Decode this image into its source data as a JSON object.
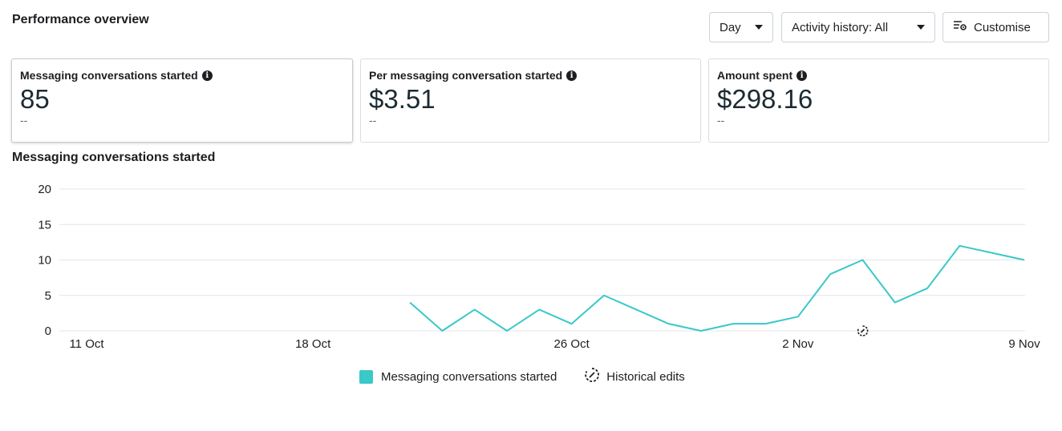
{
  "header": {
    "title": "Performance overview",
    "day_label": "Day",
    "activity_label": "Activity history: All",
    "customise_label": "Customise"
  },
  "metrics": [
    {
      "label": "Messaging conversations started",
      "value": "85",
      "sub": "--"
    },
    {
      "label": "Per messaging conversation started",
      "value": "$3.51",
      "sub": "--"
    },
    {
      "label": "Amount spent",
      "value": "$298.16",
      "sub": "--"
    }
  ],
  "chart_data": {
    "type": "line",
    "title": "Messaging conversations started",
    "xlabel": "",
    "ylabel": "",
    "ylim": [
      0,
      20
    ],
    "yticks": [
      0,
      5,
      10,
      15,
      20
    ],
    "x_ticks": [
      "11 Oct",
      "18 Oct",
      "26 Oct",
      "2 Nov",
      "9 Nov"
    ],
    "x_tick_days": [
      0,
      7,
      15,
      22,
      29
    ],
    "grid": true,
    "legend_position": "bottom",
    "series": [
      {
        "name": "Messaging conversations started",
        "color": "#3ac8c8",
        "points": [
          {
            "x": "21 Oct",
            "day": 10,
            "y": 4
          },
          {
            "x": "22 Oct",
            "day": 11,
            "y": 0
          },
          {
            "x": "23 Oct",
            "day": 12,
            "y": 3
          },
          {
            "x": "24 Oct",
            "day": 13,
            "y": 0
          },
          {
            "x": "25 Oct",
            "day": 14,
            "y": 3
          },
          {
            "x": "26 Oct",
            "day": 15,
            "y": 1
          },
          {
            "x": "27 Oct",
            "day": 16,
            "y": 5
          },
          {
            "x": "28 Oct",
            "day": 17,
            "y": 3
          },
          {
            "x": "29 Oct",
            "day": 18,
            "y": 1
          },
          {
            "x": "30 Oct",
            "day": 19,
            "y": 0
          },
          {
            "x": "31 Oct",
            "day": 20,
            "y": 1
          },
          {
            "x": "1 Nov",
            "day": 21,
            "y": 1
          },
          {
            "x": "2 Nov",
            "day": 22,
            "y": 2
          },
          {
            "x": "3 Nov",
            "day": 23,
            "y": 8
          },
          {
            "x": "4 Nov",
            "day": 24,
            "y": 10
          },
          {
            "x": "5 Nov",
            "day": 25,
            "y": 4
          },
          {
            "x": "6 Nov",
            "day": 26,
            "y": 6
          },
          {
            "x": "7 Nov",
            "day": 27,
            "y": 12
          },
          {
            "x": "9 Nov",
            "day": 29,
            "y": 10
          }
        ]
      }
    ],
    "historical_edit_markers": [
      {
        "x": "4 Nov",
        "day": 24
      }
    ],
    "legend": [
      {
        "label": "Messaging conversations started",
        "icon": "teal-square"
      },
      {
        "label": "Historical edits",
        "icon": "historical-edit-icon"
      }
    ]
  }
}
